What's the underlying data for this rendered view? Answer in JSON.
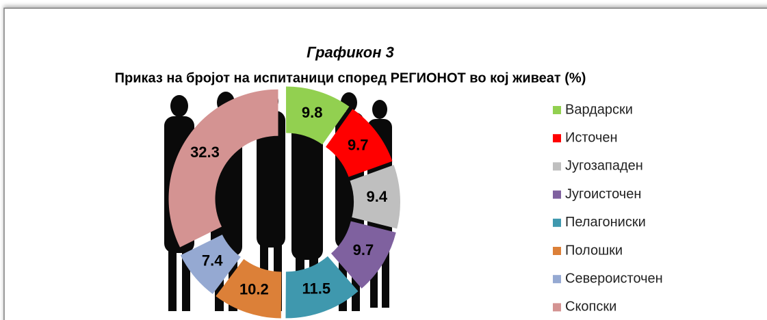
{
  "chart_data": {
    "type": "doughnut",
    "title": "Графикон 3",
    "subtitle": "Приказ на бројот на испитаници според РЕГИОНОТ во кој живеат (%)",
    "categories": [
      "Вардарски",
      "Источен",
      "Југозападен",
      "Југоисточен",
      "Пелагониски",
      "Полошки",
      "Североисточен",
      "Скопски"
    ],
    "values": [
      9.8,
      9.7,
      9.4,
      9.7,
      11.5,
      10.2,
      7.4,
      32.3
    ],
    "colors": [
      "#92d050",
      "#ff0000",
      "#bfbfbf",
      "#7f619f",
      "#3f98ae",
      "#dc8038",
      "#95a9d2",
      "#d49392"
    ],
    "legend": "right"
  }
}
